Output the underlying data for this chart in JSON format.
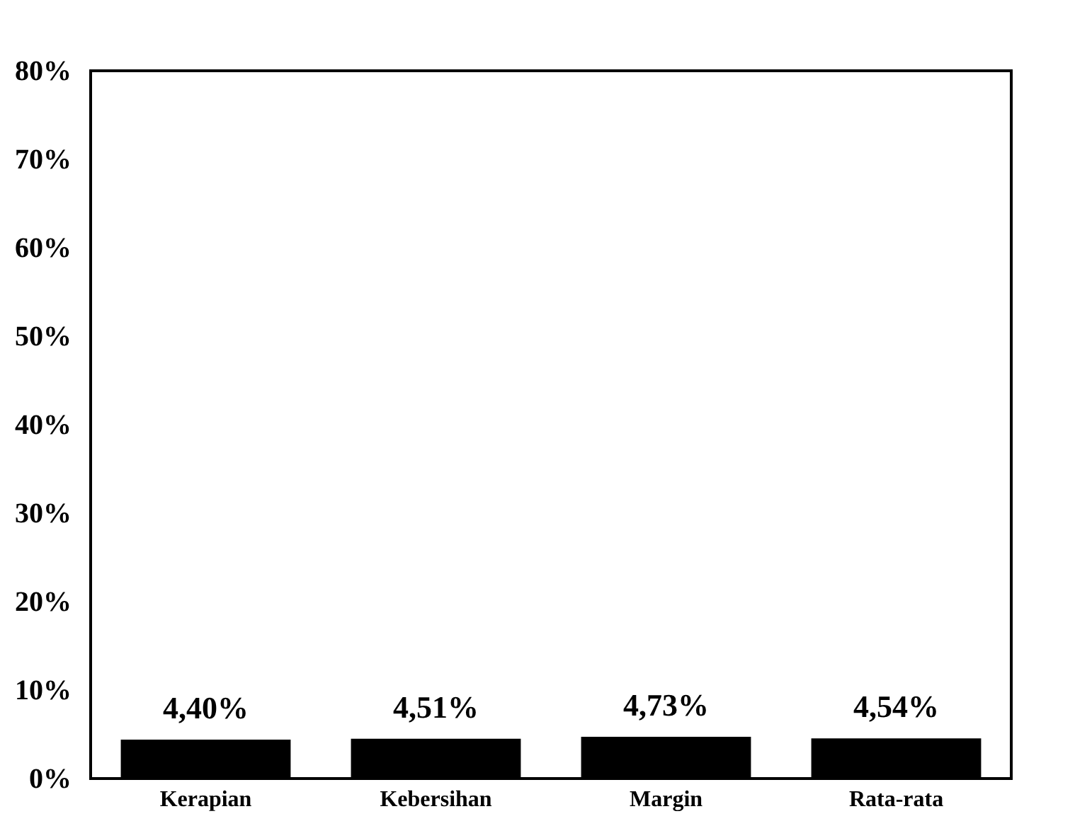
{
  "chart_data": {
    "type": "bar",
    "categories": [
      "Kerapian",
      "Kebersihan",
      "Margin",
      "Rata-rata"
    ],
    "values": [
      4.4,
      4.51,
      4.73,
      4.54
    ],
    "color": "#000000",
    "value_labels": [
      "4,40%",
      "4,51%",
      "4,73%",
      "4,54%"
    ],
    "ylim": [
      0,
      80
    ],
    "yticks": [
      {
        "value": 0,
        "label": "0%"
      },
      {
        "value": 10,
        "label": "10%"
      },
      {
        "value": 20,
        "label": "20%"
      },
      {
        "value": 30,
        "label": "30%"
      },
      {
        "value": 40,
        "label": "40%"
      },
      {
        "value": 50,
        "label": "50%"
      },
      {
        "value": 60,
        "label": "60%"
      },
      {
        "value": 70,
        "label": "70%"
      },
      {
        "value": 80,
        "label": "80%"
      }
    ],
    "grid": false
  }
}
